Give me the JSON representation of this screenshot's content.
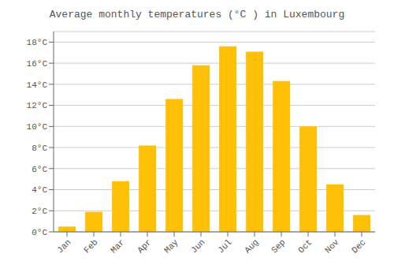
{
  "chart_data": {
    "type": "bar",
    "title": "Average monthly temperatures (°C ) in Luxembourg",
    "categories": [
      "Jan",
      "Feb",
      "Mar",
      "Apr",
      "May",
      "Jun",
      "Jul",
      "Aug",
      "Sep",
      "Oct",
      "Nov",
      "Dec"
    ],
    "values": [
      0.5,
      1.9,
      4.8,
      8.2,
      12.6,
      15.8,
      17.6,
      17.1,
      14.3,
      10.0,
      4.5,
      1.6
    ],
    "color": "#FFC107",
    "ylim": [
      0,
      19
    ],
    "yticks": [
      {
        "value": 0,
        "label": "0°C"
      },
      {
        "value": 2,
        "label": "2°C"
      },
      {
        "value": 4,
        "label": "4°C"
      },
      {
        "value": 6,
        "label": "6°C"
      },
      {
        "value": 8,
        "label": "8°C"
      },
      {
        "value": 10,
        "label": "10°C"
      },
      {
        "value": 12,
        "label": "12°C"
      },
      {
        "value": 14,
        "label": "14°C"
      },
      {
        "value": 16,
        "label": "16°C"
      },
      {
        "value": 18,
        "label": "18°C"
      }
    ],
    "grid": true
  }
}
